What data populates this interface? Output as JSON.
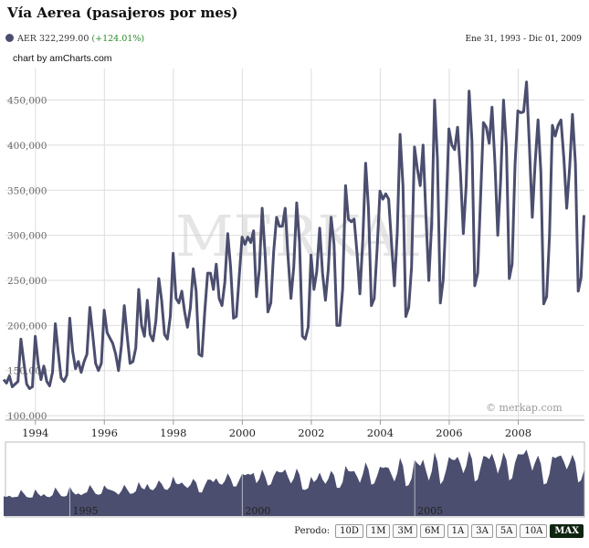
{
  "header": {
    "title": "Vía Aerea (pasajeros por mes)",
    "legend_symbol": "AER",
    "legend_value": "322,299.00",
    "legend_change": "(+124.01%)",
    "date_range": "Ene 31, 1993 - Dic 01, 2009",
    "credit": "chart by amCharts.com"
  },
  "watermark": {
    "text": "MERKAP",
    "copyright": "© merkap.com"
  },
  "colors": {
    "series": "#4b4e6e",
    "change_positive": "#2a8a2a",
    "active_button": "#0f2510",
    "grid": "#dddddd"
  },
  "periods": {
    "label": "Perodo:",
    "buttons": [
      "10D",
      "1M",
      "3M",
      "6M",
      "1A",
      "3A",
      "5A",
      "10A",
      "MAX"
    ],
    "active": "MAX"
  },
  "navigator": {
    "labels": [
      "1995",
      "2000",
      "2005"
    ]
  },
  "chart_data": {
    "type": "line",
    "title": "Vía Aerea (pasajeros por mes)",
    "series": [
      {
        "name": "AER"
      }
    ],
    "x_start": 1993.08,
    "x_step": 0.0833,
    "ylim": [
      95000,
      485000
    ],
    "xlim": [
      1993.08,
      2009.92
    ],
    "y_ticks": [
      100000,
      150000,
      200000,
      250000,
      300000,
      350000,
      400000,
      450000
    ],
    "y_tick_labels": [
      "100,000",
      "150,000",
      "200,000",
      "250,000",
      "300,000",
      "350,000",
      "400,000",
      "450,000"
    ],
    "x_ticks": [
      1994,
      1996,
      1998,
      2000,
      2002,
      2004,
      2006,
      2008
    ],
    "x_tick_labels": [
      "1994",
      "1996",
      "1998",
      "2000",
      "2002",
      "2004",
      "2006",
      "2008"
    ],
    "grid": true,
    "values": [
      140000,
      136000,
      144000,
      132000,
      135000,
      138000,
      185000,
      160000,
      135000,
      130000,
      132000,
      188000,
      158000,
      140000,
      155000,
      138000,
      133000,
      148000,
      202000,
      170000,
      142000,
      138000,
      145000,
      208000,
      172000,
      152000,
      160000,
      148000,
      160000,
      168000,
      220000,
      190000,
      158000,
      150000,
      158000,
      217000,
      192000,
      186000,
      180000,
      168000,
      150000,
      178000,
      222000,
      188000,
      158000,
      160000,
      175000,
      240000,
      200000,
      188000,
      228000,
      190000,
      183000,
      205000,
      252000,
      228000,
      190000,
      185000,
      210000,
      280000,
      230000,
      225000,
      238000,
      215000,
      198000,
      220000,
      263000,
      238000,
      168000,
      166000,
      215000,
      258000,
      258000,
      240000,
      268000,
      230000,
      222000,
      248000,
      302000,
      265000,
      208000,
      210000,
      255000,
      298000,
      290000,
      298000,
      292000,
      305000,
      232000,
      262000,
      330000,
      280000,
      215000,
      225000,
      282000,
      320000,
      310000,
      310000,
      330000,
      275000,
      230000,
      265000,
      336000,
      292000,
      188000,
      185000,
      198000,
      278000,
      240000,
      260000,
      308000,
      258000,
      228000,
      262000,
      320000,
      290000,
      200000,
      200000,
      240000,
      355000,
      318000,
      315000,
      318000,
      280000,
      235000,
      295000,
      380000,
      330000,
      222000,
      230000,
      285000,
      349000,
      340000,
      346000,
      340000,
      292000,
      244000,
      302000,
      412000,
      355000,
      210000,
      220000,
      265000,
      398000,
      374000,
      355000,
      400000,
      320000,
      250000,
      315000,
      450000,
      385000,
      225000,
      250000,
      325000,
      418000,
      400000,
      395000,
      420000,
      370000,
      302000,
      355000,
      460000,
      405000,
      244000,
      258000,
      340000,
      425000,
      420000,
      402000,
      442000,
      380000,
      300000,
      362000,
      450000,
      398000,
      252000,
      268000,
      378000,
      438000,
      436000,
      437000,
      470000,
      400000,
      320000,
      380000,
      428000,
      370000,
      224000,
      232000,
      298000,
      422000,
      410000,
      422000,
      428000,
      385000,
      330000,
      375000,
      434000,
      380000,
      238000,
      253000,
      322299
    ]
  }
}
